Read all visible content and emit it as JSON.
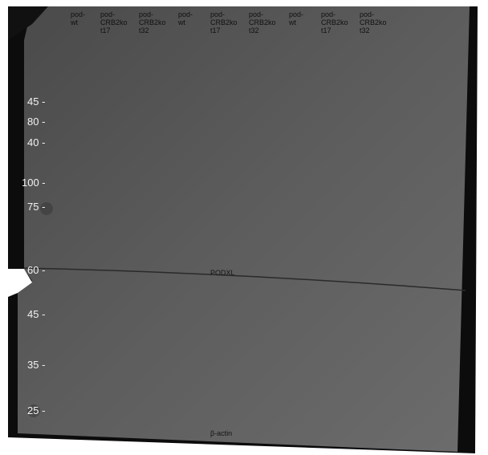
{
  "lanes": [
    {
      "lines": [
        "pod-",
        "wt"
      ]
    },
    {
      "lines": [
        "pod-",
        "CRB2ko",
        "t17"
      ]
    },
    {
      "lines": [
        "pod-",
        "CRB2ko",
        "t32"
      ]
    },
    {
      "lines": [
        "pod-",
        "wt"
      ]
    },
    {
      "lines": [
        "pod-",
        "CRB2ko",
        "t17"
      ]
    },
    {
      "lines": [
        "pod-",
        "CRB2ko",
        "t32"
      ]
    },
    {
      "lines": [
        "pod-",
        "wt"
      ]
    },
    {
      "lines": [
        "pod-",
        "CRB2ko",
        "t17"
      ]
    },
    {
      "lines": [
        "pod-",
        "CRB2ko",
        "t32"
      ]
    }
  ],
  "markers": [
    "45 -",
    "80 -",
    "40 -",
    "100 -",
    "75 -",
    "60 -",
    "45 -",
    "35 -",
    "25 -"
  ],
  "bands": [
    "PODXL",
    "β-actin"
  ]
}
